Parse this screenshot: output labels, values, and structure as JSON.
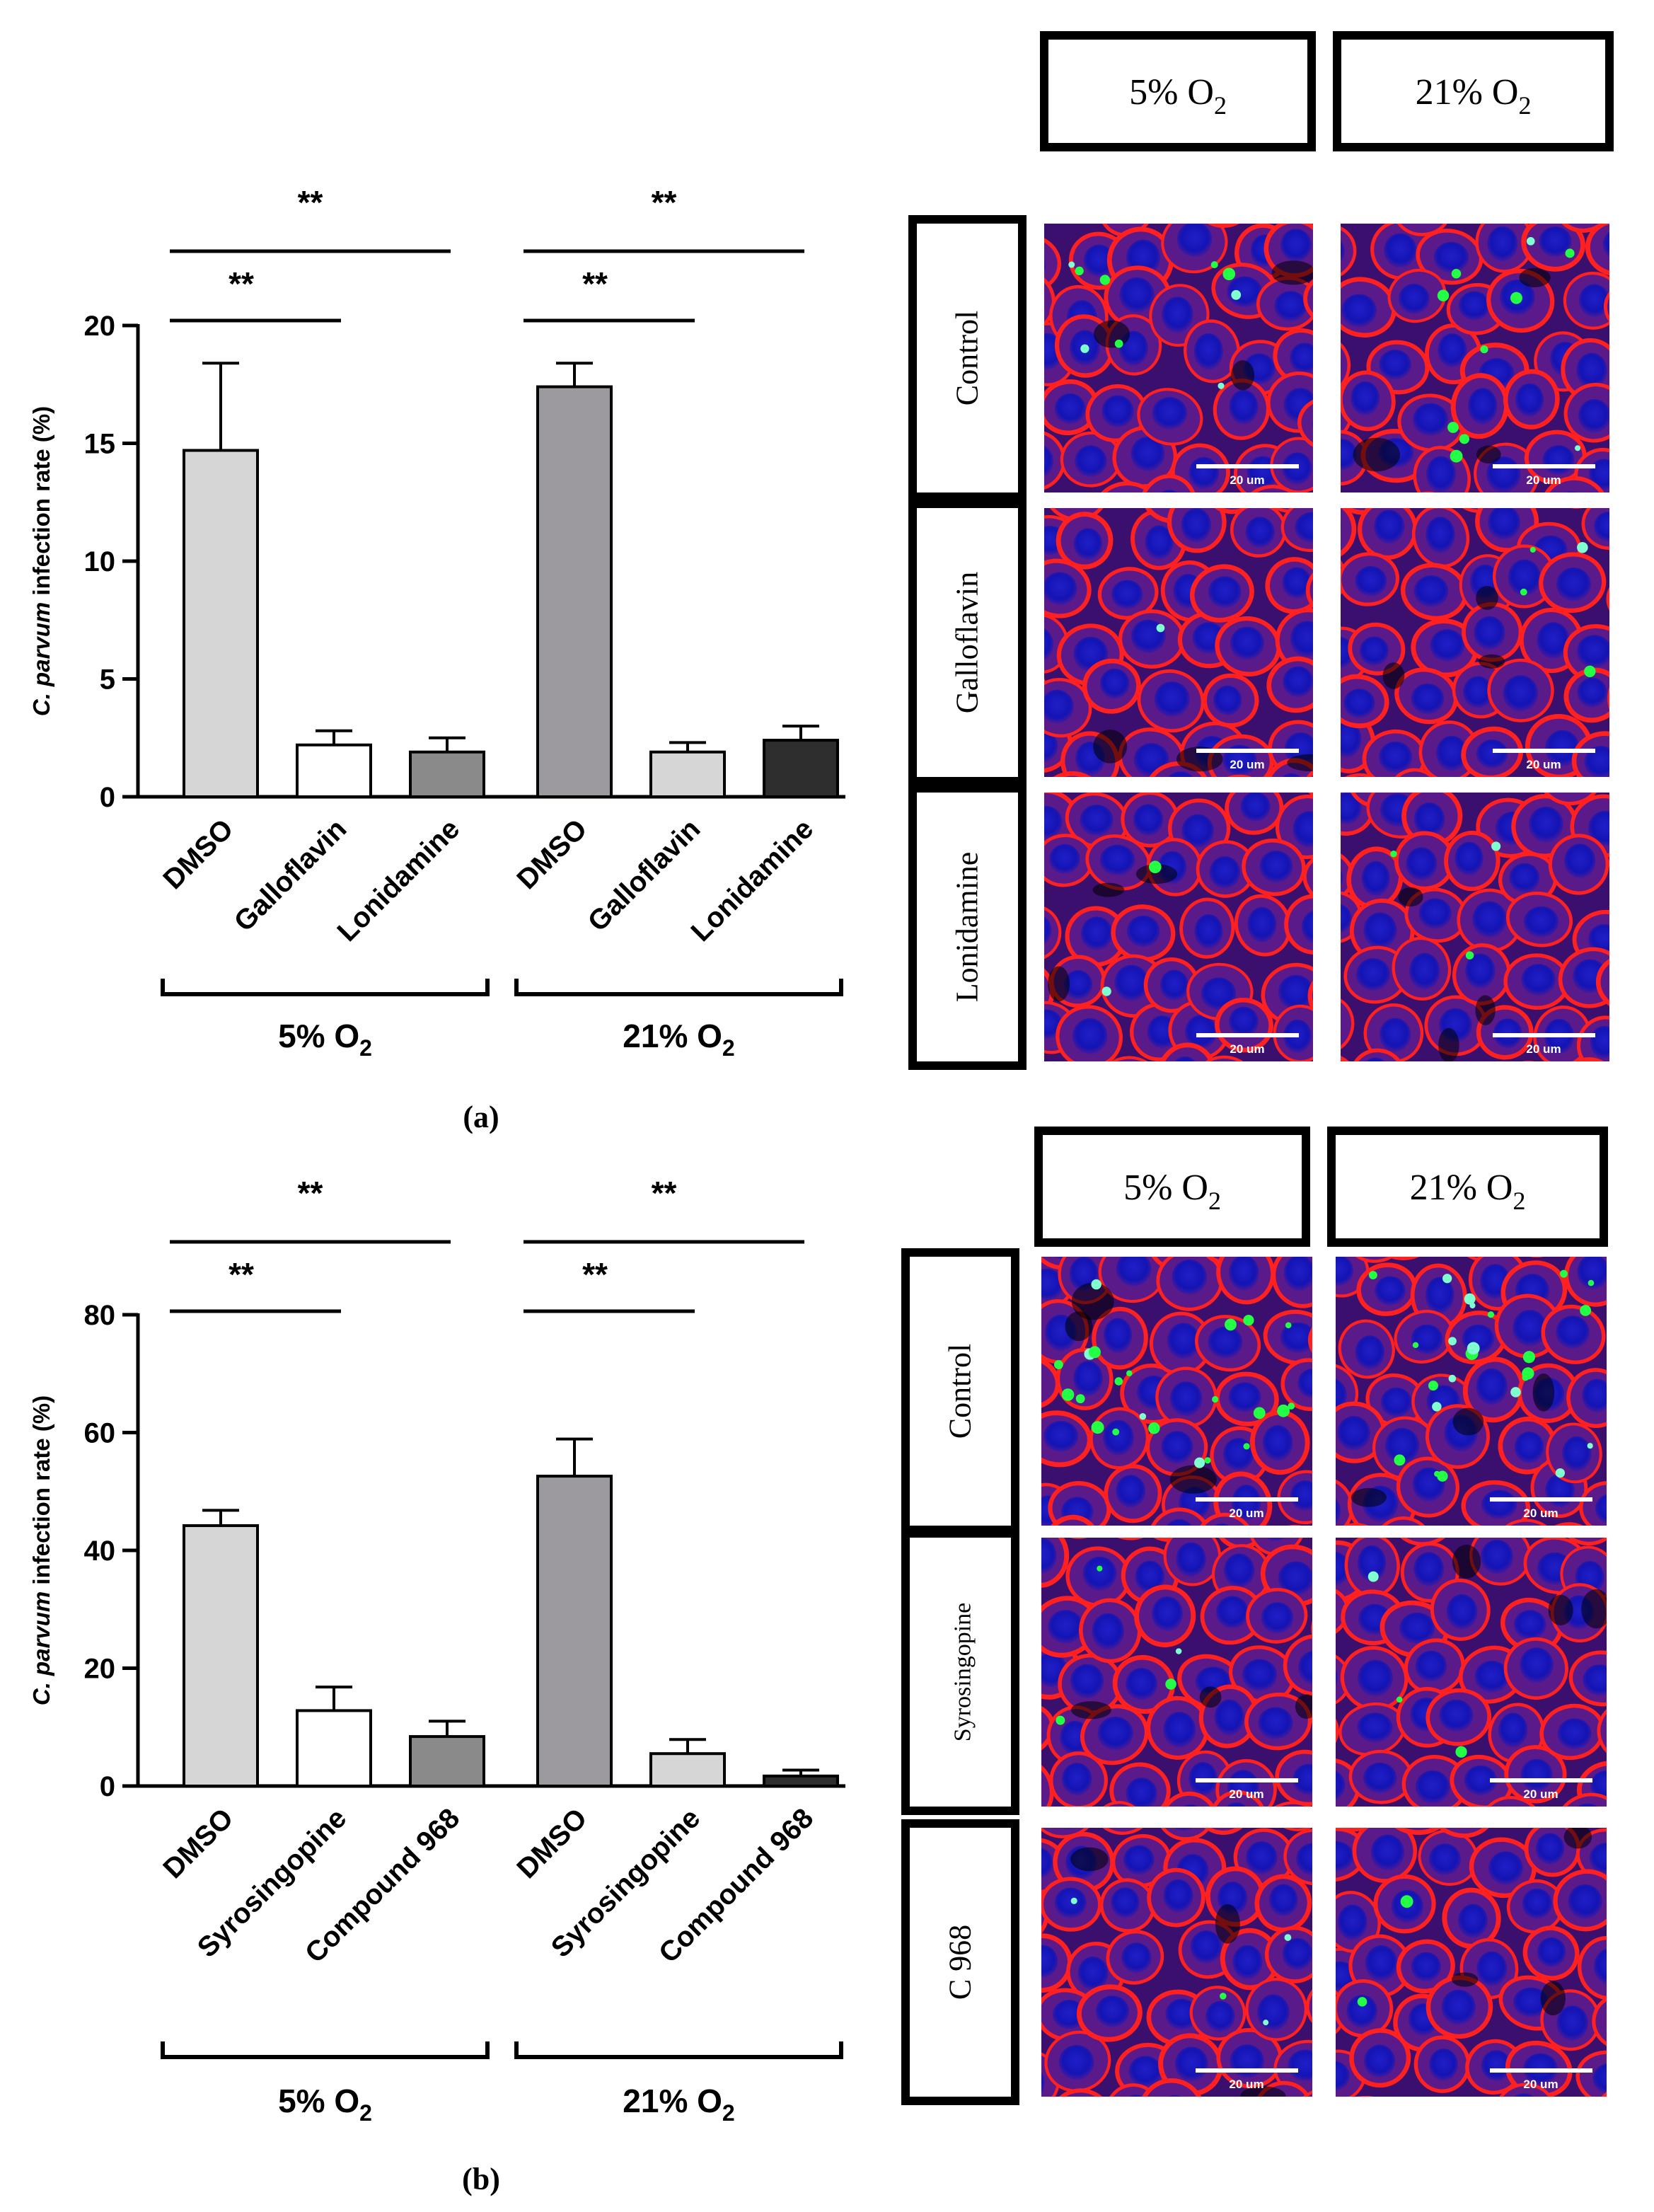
{
  "panels": [
    {
      "label": "(a)",
      "chart_data": {
        "type": "bar",
        "ylabel": "C. parvum infection rate (%)",
        "ylabel_italic": "C. parvum",
        "ylabel_rest": " infection rate (%)",
        "ylim": [
          0,
          20
        ],
        "yticks": [
          0,
          5,
          10,
          15,
          20
        ],
        "categories": [
          "DMSO",
          "Galloflavin",
          "Lonidamine",
          "DMSO",
          "Galloflavin",
          "Lonidamine"
        ],
        "values": [
          14.7,
          2.2,
          1.9,
          17.4,
          1.9,
          2.4
        ],
        "errors": [
          3.7,
          0.6,
          0.6,
          1.0,
          0.4,
          0.6
        ],
        "bar_colors": [
          "#d6d6d6",
          "#ffffff",
          "#8a8a8a",
          "#9c9a9e",
          "#d6d6d6",
          "#2e2e2e"
        ],
        "groups": [
          {
            "name": "5% O",
            "sub": "2",
            "from": 0,
            "to": 2
          },
          {
            "name": "21% O",
            "sub": "2",
            "from": 3,
            "to": 5
          }
        ],
        "significance": [
          {
            "from": 0,
            "to": 2,
            "label": "**"
          },
          {
            "from": 0,
            "to": 1,
            "label": "**"
          },
          {
            "from": 3,
            "to": 5,
            "label": "**"
          },
          {
            "from": 3,
            "to": 4,
            "label": "**"
          }
        ]
      },
      "micrographs": {
        "col_headers": [
          {
            "text": "5% O",
            "sub": "2"
          },
          {
            "text": "21% O",
            "sub": "2"
          }
        ],
        "row_labels": [
          "Control",
          "Galloflavin",
          "Lonidamine"
        ],
        "scale_bar_label": "20 um",
        "green_counts": [
          [
            9,
            10
          ],
          [
            1,
            4
          ],
          [
            2,
            3
          ]
        ]
      }
    },
    {
      "label": "(b)",
      "chart_data": {
        "type": "bar",
        "ylabel": "C. parvum infection rate (%)",
        "ylabel_italic": "C. parvum",
        "ylabel_rest": " infection rate (%)",
        "ylim": [
          0,
          80
        ],
        "yticks": [
          0,
          20,
          40,
          60,
          80
        ],
        "categories": [
          "DMSO",
          "Syrosingopine",
          "Compound 968",
          "DMSO",
          "Syrosingopine",
          "Compound 968"
        ],
        "values": [
          44.2,
          12.8,
          8.4,
          52.6,
          5.5,
          1.7
        ],
        "errors": [
          2.6,
          4.0,
          2.6,
          6.3,
          2.4,
          1.0
        ],
        "bar_colors": [
          "#d6d6d6",
          "#ffffff",
          "#8a8a8a",
          "#9c9a9e",
          "#d6d6d6",
          "#2e2e2e"
        ],
        "groups": [
          {
            "name": "5% O",
            "sub": "2",
            "from": 0,
            "to": 2
          },
          {
            "name": "21% O",
            "sub": "2",
            "from": 3,
            "to": 5
          }
        ],
        "significance": [
          {
            "from": 0,
            "to": 2,
            "label": "**"
          },
          {
            "from": 0,
            "to": 1,
            "label": "**"
          },
          {
            "from": 3,
            "to": 5,
            "label": "**"
          },
          {
            "from": 3,
            "to": 4,
            "label": "**"
          }
        ]
      },
      "micrographs": {
        "col_headers": [
          {
            "text": "5% O",
            "sub": "2"
          },
          {
            "text": "21% O",
            "sub": "2"
          }
        ],
        "row_labels": [
          "Control",
          "Syrosingopine",
          "C 968"
        ],
        "scale_bar_label": "20 um",
        "green_counts": [
          [
            22,
            24
          ],
          [
            4,
            3
          ],
          [
            4,
            2
          ]
        ]
      }
    }
  ]
}
